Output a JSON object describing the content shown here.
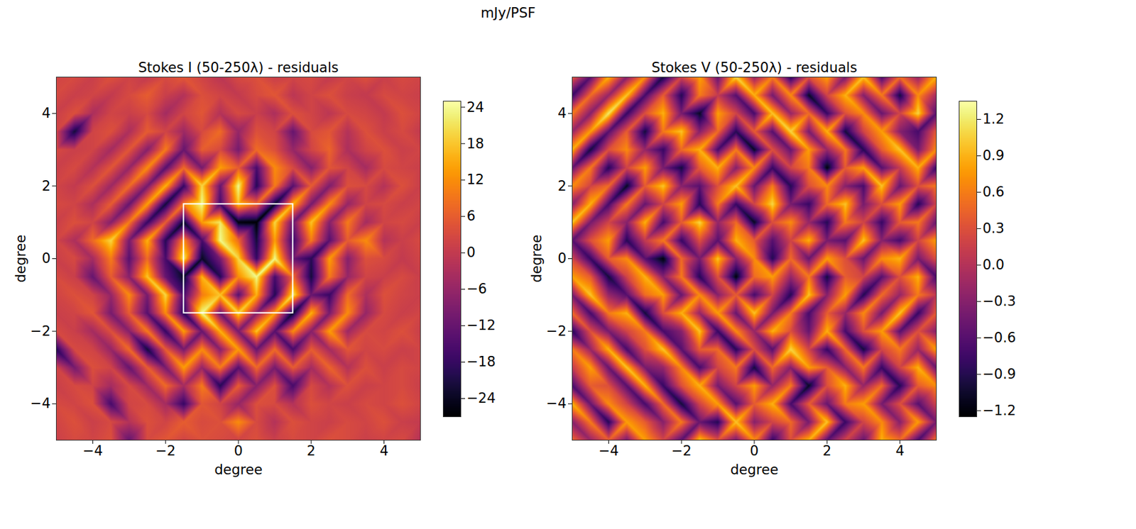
{
  "title": "mJy/PSF",
  "chart_data": [
    {
      "type": "heatmap",
      "title": "Stokes I (50-250λ) - residuals",
      "xlabel": "degree",
      "ylabel": "degree",
      "xlim": [
        -5,
        5
      ],
      "ylim": [
        -5,
        5
      ],
      "xticks": [
        -4,
        -2,
        0,
        2,
        4
      ],
      "yticks": [
        -4,
        -2,
        0,
        2,
        4
      ],
      "color": "inferno",
      "box": {
        "x": [
          -1.5,
          1.5
        ],
        "y": [
          -1.5,
          1.5
        ]
      },
      "colorbar": {
        "range": [
          -27,
          25
        ],
        "ticks": [
          -24,
          -18,
          -12,
          -6,
          0,
          6,
          12,
          18,
          24
        ]
      },
      "x": [
        -5,
        -4.5,
        -4,
        -3.5,
        -3,
        -2.5,
        -2,
        -1.5,
        -1,
        -0.5,
        0,
        0.5,
        1,
        1.5,
        2,
        2.5,
        3,
        3.5,
        4,
        4.5,
        5
      ],
      "y": [
        5,
        4.5,
        4,
        3.5,
        3,
        2.5,
        2,
        1.5,
        1,
        0.5,
        0,
        -0.5,
        -1,
        -1.5,
        -2,
        -2.5,
        -3,
        -3.5,
        -4,
        -4.5,
        -5
      ],
      "cells": [
        [
          2,
          3,
          1,
          4,
          2,
          0,
          3,
          5,
          2,
          -1,
          3,
          4,
          1,
          2,
          3,
          0,
          2,
          4,
          1,
          3,
          2
        ],
        [
          3,
          1,
          2,
          0,
          3,
          6,
          1,
          -2,
          4,
          2,
          0,
          3,
          5,
          -1,
          2,
          4,
          1,
          0,
          3,
          2,
          1
        ],
        [
          1,
          4,
          -3,
          2,
          1,
          3,
          -4,
          2,
          5,
          -2,
          3,
          1,
          -3,
          4,
          2,
          -1,
          3,
          2,
          0,
          4,
          2
        ],
        [
          2,
          -22,
          2,
          4,
          -3,
          6,
          2,
          -5,
          3,
          8,
          -6,
          4,
          2,
          -12,
          3,
          5,
          -2,
          4,
          1,
          3,
          0
        ],
        [
          3,
          1,
          2,
          -4,
          5,
          -8,
          10,
          -12,
          6,
          3,
          -10,
          8,
          4,
          -6,
          2,
          7,
          -3,
          2,
          4,
          1,
          2
        ],
        [
          1,
          3,
          -2,
          5,
          -6,
          12,
          -14,
          8,
          -10,
          14,
          6,
          -16,
          12,
          3,
          -8,
          5,
          2,
          -4,
          3,
          2,
          1
        ],
        [
          2,
          0,
          4,
          -5,
          8,
          -10,
          16,
          -18,
          20,
          -12,
          24,
          -20,
          10,
          -14,
          6,
          -9,
          4,
          3,
          -2,
          4,
          1
        ],
        [
          3,
          2,
          -3,
          6,
          -12,
          14,
          -22,
          10,
          24,
          -16,
          18,
          8,
          -24,
          16,
          -10,
          12,
          -6,
          2,
          3,
          1,
          2
        ],
        [
          1,
          4,
          2,
          -8,
          10,
          -18,
          6,
          -24,
          14,
          22,
          -26,
          -27,
          20,
          -12,
          18,
          -8,
          10,
          -4,
          2,
          3,
          1
        ],
        [
          2,
          -3,
          8,
          20,
          -10,
          16,
          -20,
          12,
          -16,
          24,
          8,
          -22,
          14,
          -18,
          10,
          -14,
          6,
          12,
          -2,
          1,
          3
        ],
        [
          1,
          3,
          -4,
          10,
          -14,
          8,
          -16,
          22,
          -24,
          -10,
          20,
          -18,
          24,
          -12,
          -20,
          14,
          -8,
          4,
          3,
          0,
          2
        ],
        [
          3,
          1,
          -12,
          6,
          -8,
          18,
          -12,
          -24,
          16,
          -20,
          12,
          24,
          -16,
          8,
          -22,
          10,
          -6,
          2,
          1,
          3,
          1
        ],
        [
          2,
          4,
          2,
          -6,
          12,
          -10,
          20,
          -16,
          10,
          18,
          -14,
          16,
          -20,
          22,
          -12,
          -18,
          8,
          -3,
          4,
          2,
          1
        ],
        [
          1,
          2,
          5,
          -10,
          6,
          -14,
          12,
          -20,
          24,
          -12,
          20,
          -8,
          14,
          -24,
          16,
          -10,
          12,
          -6,
          3,
          1,
          2
        ],
        [
          3,
          1,
          -4,
          4,
          -8,
          10,
          -18,
          14,
          -12,
          16,
          -10,
          18,
          -14,
          12,
          -8,
          14,
          -5,
          3,
          2,
          4,
          1
        ],
        [
          -20,
          3,
          2,
          -6,
          8,
          -22,
          6,
          -10,
          12,
          -8,
          14,
          -12,
          8,
          -16,
          6,
          -4,
          5,
          2,
          3,
          1,
          2
        ],
        [
          2,
          -10,
          4,
          2,
          -12,
          6,
          -10,
          14,
          -6,
          10,
          -14,
          8,
          -10,
          6,
          -4,
          7,
          -2,
          4,
          1,
          3,
          2
        ],
        [
          1,
          3,
          2,
          -4,
          3,
          -5,
          8,
          -4,
          10,
          -20,
          6,
          -8,
          4,
          -16,
          3,
          -2,
          4,
          1,
          2,
          3,
          1
        ],
        [
          3,
          2,
          4,
          -16,
          2,
          3,
          -4,
          -18,
          5,
          2,
          -6,
          4,
          3,
          -2,
          4,
          2,
          1,
          3,
          2,
          4,
          2
        ],
        [
          2,
          4,
          1,
          3,
          -2,
          4,
          2,
          6,
          3,
          4,
          12,
          3,
          -2,
          4,
          2,
          1,
          3,
          2,
          4,
          1,
          0
        ],
        [
          1,
          3,
          2,
          4,
          -12,
          3,
          5,
          2,
          4,
          3,
          2,
          4,
          1,
          3,
          2,
          4,
          3,
          1,
          2,
          3,
          -2
        ]
      ]
    },
    {
      "type": "heatmap",
      "title": "Stokes V (50-250λ) - residuals",
      "xlabel": "degree",
      "ylabel": "degree",
      "xlim": [
        -5,
        5
      ],
      "ylim": [
        -5,
        5
      ],
      "xticks": [
        -4,
        -2,
        0,
        2,
        4
      ],
      "yticks": [
        -4,
        -2,
        0,
        2,
        4
      ],
      "color": "inferno",
      "colorbar": {
        "range": [
          -1.25,
          1.35
        ],
        "ticks": [
          -1.2,
          -0.9,
          -0.6,
          -0.3,
          {
            "value": 0,
            "label": "0.0"
          },
          0.3,
          0.6,
          0.9,
          1.2
        ]
      },
      "x": [
        -5,
        -4.5,
        -4,
        -3.5,
        -3,
        -2.5,
        -2,
        -1.5,
        -1,
        -0.5,
        0,
        0.5,
        1,
        1.5,
        2,
        2.5,
        3,
        3.5,
        4,
        4.5,
        5
      ],
      "y": [
        5,
        4.5,
        4,
        3.5,
        3,
        2.5,
        2,
        1.5,
        1,
        0.5,
        0,
        -0.5,
        -1,
        -1.5,
        -2,
        -2.5,
        -3,
        -3.5,
        -4,
        -4.5,
        -5
      ],
      "cells": [
        [
          0.4,
          -0.6,
          0.9,
          -0.3,
          0.7,
          -1.0,
          0.2,
          0.8,
          -0.5,
          1.1,
          -0.2,
          0.6,
          -0.9,
          0.3,
          0.8,
          -0.4,
          1.0,
          -0.7,
          0.5,
          -0.2,
          0.9
        ],
        [
          -0.8,
          0.5,
          -0.2,
          1.0,
          -0.7,
          0.4,
          -0.9,
          0.6,
          0.1,
          -0.6,
          0.9,
          -0.4,
          0.7,
          -1.1,
          0.2,
          0.9,
          -0.3,
          0.6,
          -1.0,
          0.7,
          -0.1
        ],
        [
          0.6,
          -0.3,
          1.2,
          -0.8,
          0.3,
          0.9,
          -0.4,
          -1.1,
          0.8,
          0.2,
          -0.7,
          1.0,
          -0.2,
          0.5,
          -0.8,
          0.3,
          0.7,
          -0.5,
          0.2,
          1.1,
          -0.6
        ],
        [
          -0.2,
          0.8,
          -0.6,
          0.4,
          -1.0,
          0.6,
          1.0,
          -0.3,
          0.5,
          -0.9,
          0.4,
          -0.6,
          1.1,
          -0.4,
          0.9,
          -1.0,
          0.2,
          0.8,
          -0.3,
          -0.7,
          0.4
        ],
        [
          0.9,
          -1.0,
          0.3,
          0.7,
          -0.2,
          -0.8,
          0.5,
          0.9,
          -0.7,
          0.6,
          -1.1,
          0.3,
          -0.5,
          0.8,
          -0.2,
          0.6,
          -0.9,
          0.4,
          1.0,
          -0.4,
          0.7
        ],
        [
          -0.5,
          0.6,
          -0.9,
          0.2,
          0.8,
          -0.4,
          -1.0,
          0.4,
          0.9,
          -0.3,
          0.7,
          -0.8,
          0.2,
          0.6,
          -1.2,
          0.4,
          0.8,
          -0.6,
          0.1,
          0.9,
          -0.8
        ],
        [
          0.7,
          0.2,
          0.5,
          -1.1,
          0.4,
          1.0,
          -0.3,
          -0.6,
          0.3,
          1.0,
          -0.5,
          0.6,
          -0.9,
          0.3,
          0.7,
          -0.3,
          -0.7,
          1.0,
          -0.5,
          0.3,
          0.6
        ],
        [
          -0.3,
          0.9,
          -0.7,
          0.6,
          -0.5,
          0.2,
          0.8,
          -0.9,
          0.6,
          -0.8,
          0.2,
          1.1,
          -0.4,
          -0.8,
          0.5,
          1.0,
          -0.4,
          0.3,
          0.8,
          -0.9,
          0.2
        ],
        [
          1.0,
          -0.4,
          0.2,
          -0.3,
          0.9,
          -0.7,
          0.4,
          1.1,
          -0.2,
          0.5,
          -1.1,
          0.3,
          0.7,
          -0.2,
          -0.9,
          0.6,
          0.2,
          -0.8,
          0.4,
          0.6,
          -0.5
        ],
        [
          -0.6,
          0.3,
          0.8,
          -0.9,
          0.1,
          0.6,
          -0.8,
          0.3,
          -0.6,
          0.9,
          0.4,
          -0.6,
          0.2,
          0.9,
          -0.4,
          -0.6,
          1.0,
          -0.3,
          -0.7,
          0.2,
          0.8
        ],
        [
          0.2,
          -0.8,
          0.4,
          0.7,
          -0.6,
          -1.2,
          0.5,
          -0.4,
          1.0,
          -0.3,
          0.7,
          -0.9,
          0.5,
          -0.5,
          0.8,
          0.3,
          -0.5,
          0.7,
          0.9,
          -0.4,
          0.3
        ],
        [
          0.8,
          0.4,
          -1.0,
          0.2,
          0.9,
          -0.3,
          0.6,
          -0.9,
          0.3,
          -1.2,
          0.5,
          0.8,
          -0.2,
          0.6,
          -1.0,
          0.4,
          0.2,
          -0.6,
          0.3,
          0.9,
          -0.7
        ],
        [
          -0.4,
          1.0,
          -0.2,
          -0.6,
          0.5,
          0.8,
          -0.5,
          0.7,
          -0.3,
          0.4,
          -0.7,
          0.2,
          -0.9,
          1.0,
          -0.3,
          0.8,
          -0.9,
          0.5,
          -0.2,
          0.6,
          0.1
        ],
        [
          0.5,
          -0.7,
          0.6,
          0.9,
          -1.0,
          0.3,
          0.9,
          -0.2,
          0.8,
          -0.5,
          1.0,
          -0.4,
          0.6,
          -0.7,
          0.4,
          -0.2,
          0.7,
          -0.4,
          1.0,
          -0.8,
          0.4
        ],
        [
          -0.9,
          0.3,
          -0.4,
          0.2,
          0.6,
          -0.7,
          -0.3,
          1.0,
          -0.8,
          0.7,
          -0.2,
          0.9,
          0.3,
          -0.5,
          0.9,
          -0.7,
          0.3,
          0.8,
          -0.6,
          0.3,
          -0.3
        ],
        [
          0.6,
          -0.2,
          0.9,
          -0.7,
          0.3,
          1.0,
          -0.6,
          0.4,
          0.5,
          -0.9,
          0.3,
          -0.6,
          1.1,
          0.2,
          -0.8,
          0.5,
          -1.0,
          0.2,
          0.6,
          -0.2,
          0.8
        ],
        [
          0.1,
          0.8,
          -0.5,
          1.0,
          -0.4,
          -0.2,
          0.7,
          -0.7,
          0.2,
          0.6,
          -1.0,
          0.5,
          -0.3,
          0.8,
          0.4,
          -0.3,
          0.6,
          -0.8,
          0.2,
          0.9,
          -0.5
        ],
        [
          -0.7,
          0.4,
          0.3,
          -0.6,
          0.9,
          -0.8,
          0.3,
          0.9,
          -0.4,
          0.2,
          0.8,
          -0.2,
          0.6,
          -1.1,
          0.3,
          0.9,
          -0.2,
          0.5,
          -0.9,
          0.4,
          0.7
        ],
        [
          0.9,
          -0.5,
          0.7,
          0.2,
          -0.7,
          0.5,
          -1.0,
          0.2,
          0.8,
          -0.6,
          0.4,
          0.9,
          -0.7,
          0.4,
          -0.5,
          0.6,
          0.8,
          -0.4,
          0.3,
          -0.6,
          0.2
        ],
        [
          -0.3,
          0.6,
          -0.9,
          0.8,
          0.4,
          -0.3,
          0.6,
          -0.5,
          -0.9,
          1.0,
          -0.3,
          0.2,
          0.5,
          -0.4,
          1.0,
          -0.8,
          0.2,
          0.7,
          -0.3,
          0.8,
          -0.4
        ],
        [
          0.5,
          -0.2,
          0.4,
          -0.4,
          0.8,
          0.2,
          -0.6,
          1.0,
          0.3,
          -0.4,
          0.7,
          -0.8,
          0.3,
          0.9,
          -0.6,
          0.2,
          -0.5,
          0.9,
          0.5,
          -0.7,
          0.6
        ]
      ]
    }
  ]
}
